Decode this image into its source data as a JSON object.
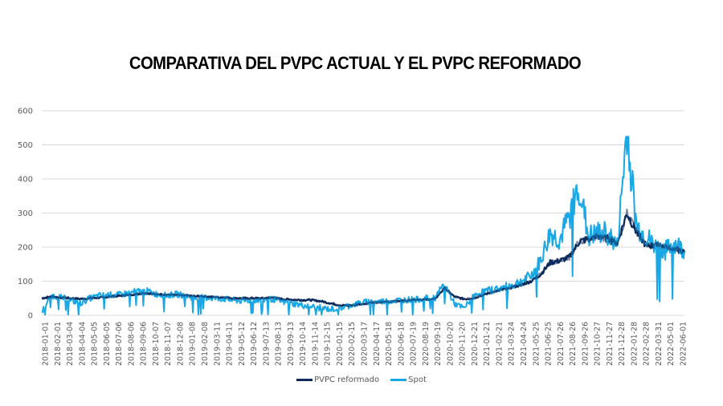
{
  "chart_data": {
    "type": "line",
    "title": "COMPARATIVA DEL PVPC ACTUAL Y EL PVPC REFORMADO",
    "xlabel": "",
    "ylabel": "",
    "ylim": [
      0,
      600
    ],
    "yticks": [
      0,
      100,
      200,
      300,
      400,
      500,
      600
    ],
    "grid": true,
    "legend_position": "bottom",
    "x_tick_labels": [
      "2018-01-01",
      "2018-02-01",
      "2018-03-04",
      "2018-04-04",
      "2018-05-05",
      "2018-06-05",
      "2018-07-06",
      "2018-08-06",
      "2018-09-06",
      "2018-10-07",
      "2018-11-07",
      "2018-12-08",
      "2019-01-08",
      "2019-02-08",
      "2019-03-11",
      "2019-04-11",
      "2019-05-12",
      "2019-06-12",
      "2019-07-13",
      "2019-08-13",
      "2019-09-13",
      "2019-10-14",
      "2019-11-14",
      "2019-12-15",
      "2020-01-15",
      "2020-02-15",
      "2020-03-17",
      "2020-04-17",
      "2020-05-18",
      "2020-06-18",
      "2020-07-19",
      "2020-08-19",
      "2020-09-19",
      "2020-10-20",
      "2020-11-20",
      "2020-12-21",
      "2021-01-21",
      "2021-02-21",
      "2021-03-24",
      "2021-04-24",
      "2021-05-25",
      "2021-06-25",
      "2021-07-26",
      "2021-08-26",
      "2021-09-26",
      "2021-10-27",
      "2021-11-27",
      "2021-12-28",
      "2022-01-28",
      "2022-02-28",
      "2022-03-31",
      "2022-05-01",
      "2022-06-01"
    ],
    "series": [
      {
        "name": "PVPC reformado",
        "color": "#0d2a5c",
        "values": [
          50,
          55,
          52,
          50,
          48,
          50,
          52,
          55,
          57,
          60,
          63,
          65,
          62,
          60,
          60,
          58,
          56,
          55,
          53,
          52,
          50,
          50,
          50,
          50,
          52,
          48,
          46,
          45,
          45,
          42,
          36,
          30,
          28,
          32,
          36,
          38,
          40,
          42,
          44,
          45,
          46,
          48,
          80,
          55,
          48,
          50,
          60,
          68,
          75,
          82,
          90,
          100,
          120,
          155,
          160,
          170,
          215,
          225,
          230,
          225,
          210,
          300,
          245,
          205,
          205,
          200,
          195,
          185
        ]
      },
      {
        "name": "Spot",
        "color": "#1aa7e6",
        "values": [
          10,
          58,
          52,
          45,
          35,
          50,
          58,
          60,
          60,
          65,
          70,
          70,
          62,
          58,
          62,
          58,
          50,
          52,
          50,
          48,
          44,
          42,
          45,
          45,
          48,
          40,
          36,
          30,
          26,
          22,
          18,
          20,
          28,
          35,
          40,
          40,
          42,
          44,
          46,
          46,
          50,
          52,
          92,
          35,
          20,
          55,
          70,
          75,
          80,
          88,
          100,
          115,
          160,
          240,
          220,
          290,
          380,
          230,
          240,
          240,
          200,
          545,
          260,
          230,
          200,
          190,
          210,
          190
        ]
      }
    ]
  },
  "legend": {
    "items": [
      {
        "label": "PVPC reformado",
        "color": "#0d2a5c"
      },
      {
        "label": "Spot",
        "color": "#1aa7e6"
      }
    ]
  },
  "axis": {
    "y_labels": [
      "600",
      "500",
      "400",
      "300",
      "200",
      "100",
      "0"
    ]
  }
}
